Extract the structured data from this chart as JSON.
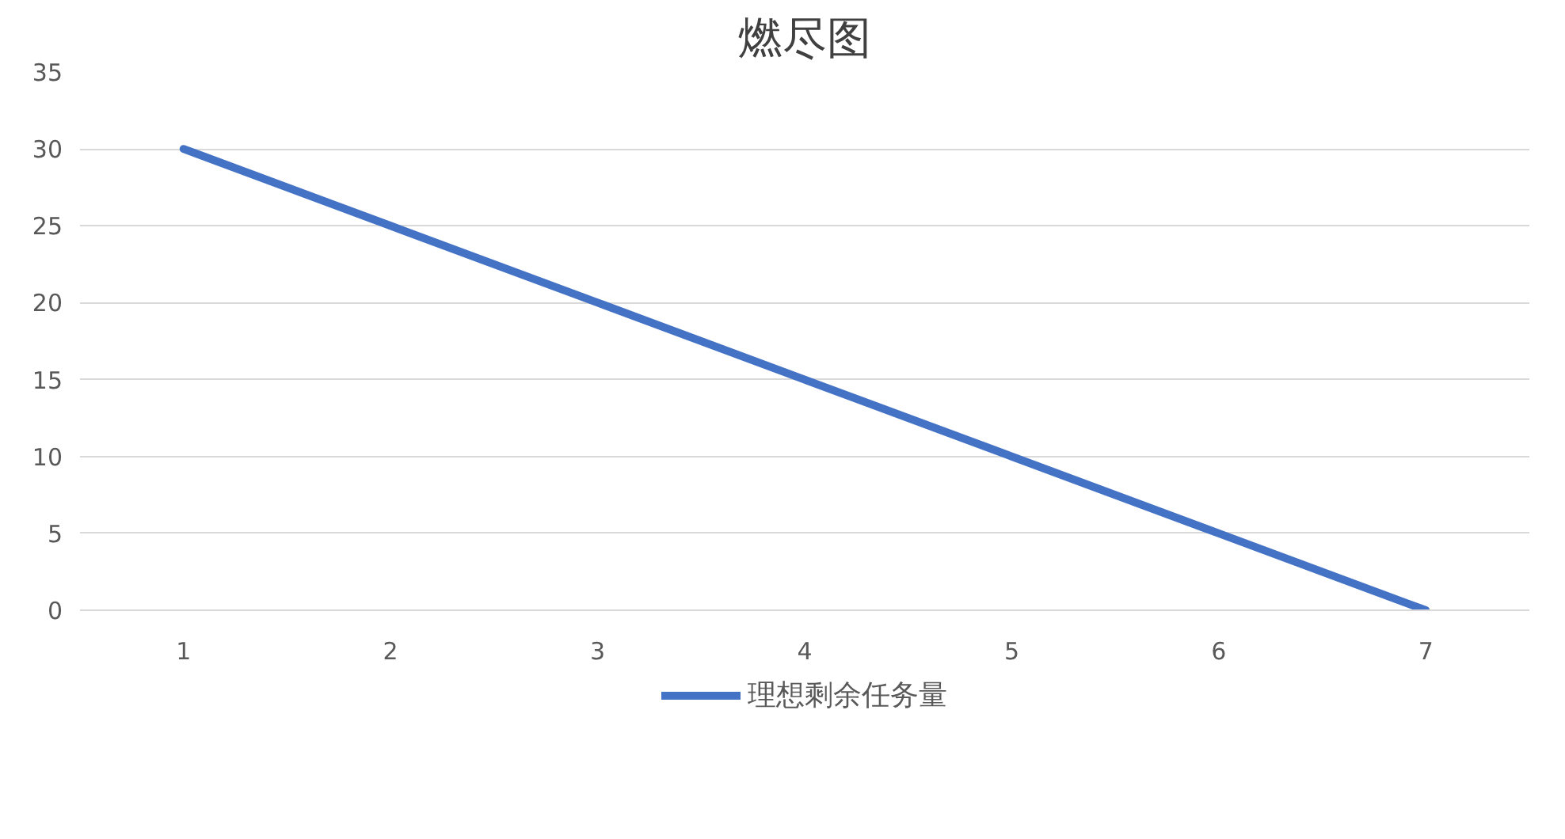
{
  "chart_data": {
    "type": "line",
    "title": "燃尽图",
    "categories": [
      "1",
      "2",
      "3",
      "4",
      "5",
      "6",
      "7"
    ],
    "series": [
      {
        "name": "理想剩余任务量",
        "color": "#4472c4",
        "values": [
          30,
          25,
          20,
          15,
          10,
          5,
          0
        ]
      }
    ],
    "ylim": [
      0,
      35
    ],
    "yticks": [
      0,
      5,
      10,
      15,
      20,
      25,
      30,
      35
    ],
    "grid": "y",
    "legend": "bottom",
    "marker": "none",
    "line_style": "solid"
  }
}
